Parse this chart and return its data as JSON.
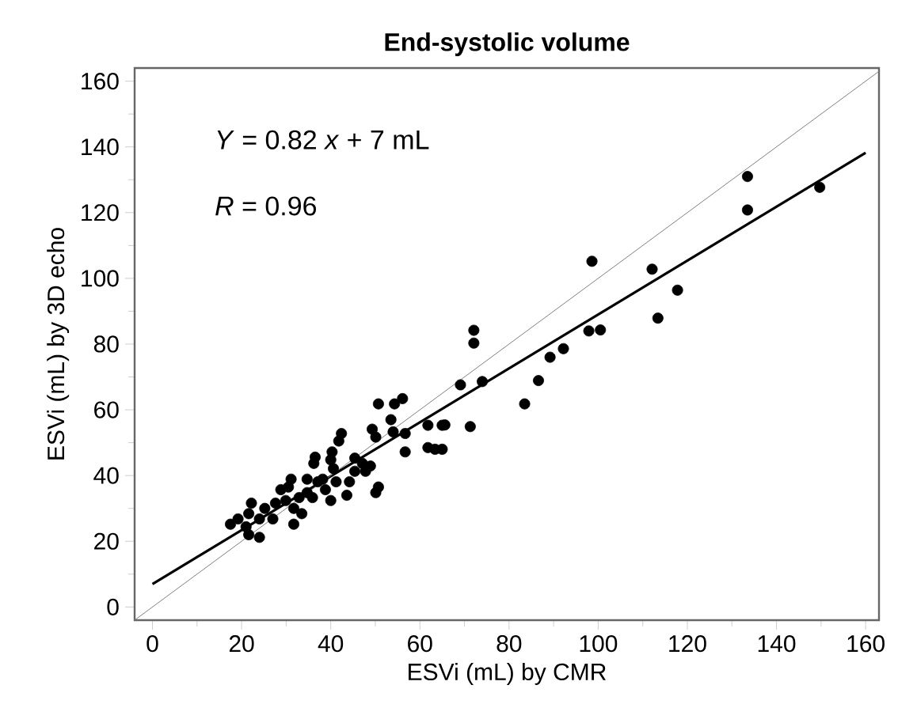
{
  "chart_data": {
    "type": "scatter",
    "title": "End-systolic volume",
    "xlabel": "ESVi (mL) by CMR",
    "ylabel": "ESVi (mL) by 3D echo",
    "annotations": [
      "*Y* = 0.82 *x* + 7 mL",
      "*R* = 0.96"
    ],
    "xlim": [
      -4,
      163
    ],
    "ylim": [
      -4,
      164
    ],
    "xticks": [
      0,
      20,
      40,
      60,
      80,
      100,
      120,
      140,
      160
    ],
    "yticks": [
      0,
      20,
      40,
      60,
      80,
      100,
      120,
      140,
      160
    ],
    "grid": false,
    "series": [
      {
        "color": "#000000",
        "marker": "circle",
        "x": [
          133.5,
          133.5,
          149.7,
          98.6,
          112.1,
          117.8,
          113.4,
          97.9,
          100.5,
          92.2,
          89.2,
          86.6,
          83.5,
          72.1,
          72.1,
          69.1,
          74,
          71.3,
          65.6,
          65,
          61.8,
          65,
          61.8,
          63.4,
          56.7,
          56.7,
          50.7,
          54.3,
          56.1,
          53.5,
          54,
          49.3,
          50.1,
          42.4,
          41.8,
          40.3,
          36.5,
          36.2,
          40,
          40.6,
          45.4,
          47.1,
          47.8,
          48.9,
          45.4,
          44.2,
          43.6,
          50.7,
          50.1,
          40,
          38.8,
          37.1,
          34.7,
          31.1,
          30.5,
          28.8,
          29.9,
          32.9,
          31.7,
          33.5,
          31.7,
          27.6,
          25.2,
          22.2,
          21.6,
          24,
          27,
          19.2,
          17.5,
          21,
          21.6,
          24,
          34.7,
          35.9,
          38.2,
          41.2
        ],
        "values": [
          131,
          120.8,
          127.7,
          105.2,
          102.8,
          96.4,
          87.9,
          84,
          84.3,
          78.6,
          76,
          68.9,
          61.8,
          84.2,
          80.3,
          67.6,
          68.6,
          54.9,
          55.4,
          55.3,
          55.3,
          48,
          48.5,
          48,
          47.2,
          52.8,
          61.8,
          61.8,
          63.4,
          57,
          53.3,
          54.1,
          51.7,
          52.8,
          50.5,
          47.2,
          45.6,
          43.7,
          44.8,
          42.1,
          45.3,
          43.7,
          41.3,
          42.9,
          41.3,
          38.1,
          34,
          36.5,
          34.8,
          32.4,
          35.7,
          38.1,
          38.9,
          38.9,
          36.5,
          35.7,
          32.4,
          33.3,
          30,
          28.4,
          25.2,
          31.6,
          30,
          31.6,
          28.4,
          26.8,
          26.8,
          26.8,
          25.2,
          24.4,
          22,
          21.2,
          34.8,
          33.3,
          38.9,
          38.1
        ]
      },
      {
        "type": "line",
        "color": "#000000",
        "marker": "none",
        "line_style": "solid",
        "x": [
          0,
          160
        ],
        "values": [
          7,
          138.2
        ]
      },
      {
        "type": "line",
        "color": "#808080",
        "marker": "none",
        "line_style": "solid",
        "x": [
          -4,
          163
        ],
        "values": [
          -4,
          163
        ]
      }
    ]
  }
}
